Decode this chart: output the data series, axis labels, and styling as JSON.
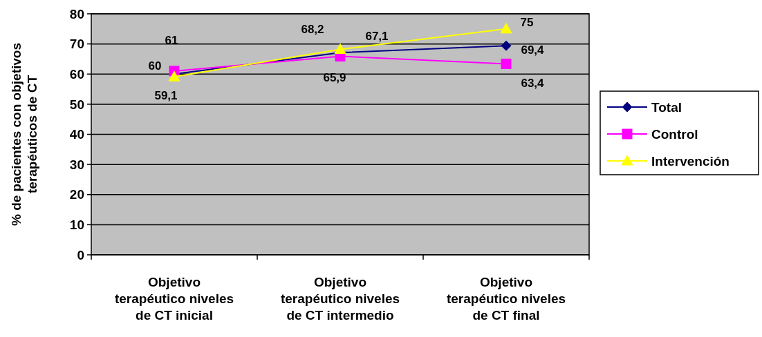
{
  "chart_data": {
    "type": "line",
    "ylabel": "% de pacientes con objetivos terapéuticos de CT",
    "categories": [
      "Objetivo terapéutico niveles de CT inicial",
      "Objetivo terapéutico niveles de CT intermedio",
      "Objetivo terapéutico niveles de CT final"
    ],
    "series": [
      {
        "name": "Total",
        "color": "#000080",
        "marker": "diamond",
        "values": [
          60,
          67.1,
          69.4
        ],
        "value_labels": [
          "60",
          "67,1",
          "69,4"
        ]
      },
      {
        "name": "Control",
        "color": "#ff00ff",
        "marker": "square",
        "values": [
          61,
          65.9,
          63.4
        ],
        "value_labels": [
          "61",
          "65,9",
          "63,4"
        ]
      },
      {
        "name": "Intervención",
        "color": "#ffff00",
        "marker": "triangle",
        "values": [
          59.1,
          68.2,
          75
        ],
        "value_labels": [
          "59,1",
          "68,2",
          "75"
        ]
      }
    ],
    "ylim": [
      0,
      80
    ],
    "yticks": [
      0,
      10,
      20,
      30,
      40,
      50,
      60,
      70,
      80
    ],
    "grid": "y",
    "legend": "right"
  }
}
